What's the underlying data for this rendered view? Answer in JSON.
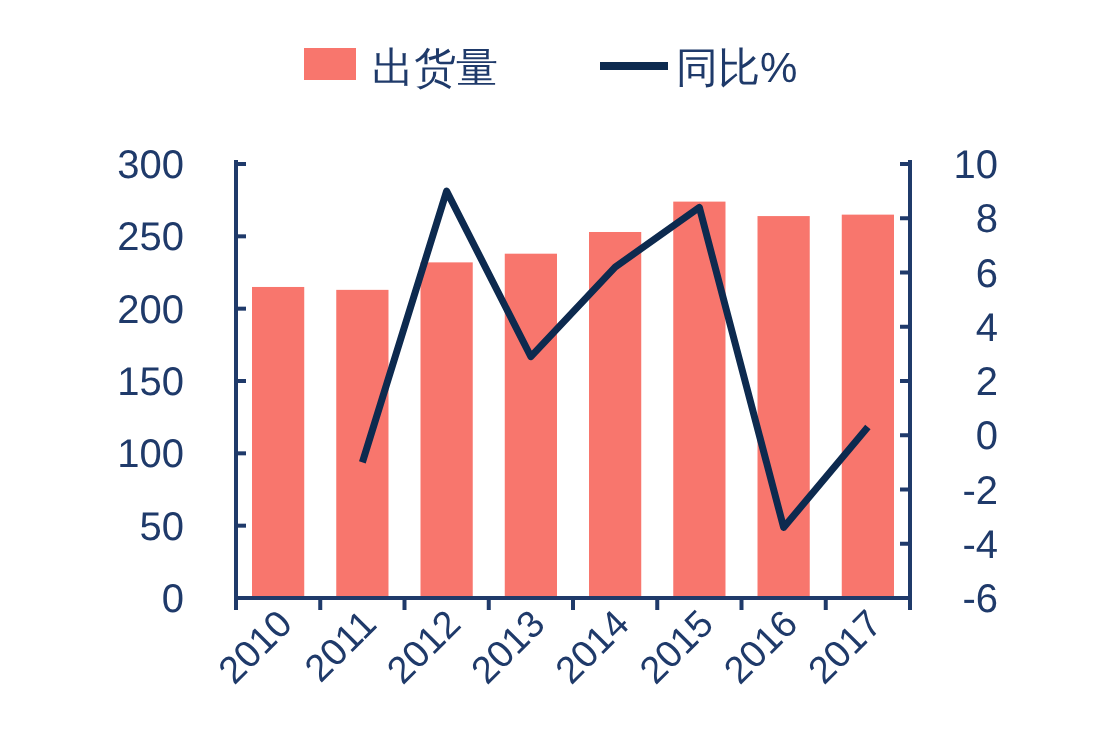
{
  "chart_data": {
    "type": "bar",
    "categories": [
      "2010",
      "2011",
      "2012",
      "2013",
      "2014",
      "2015",
      "2016",
      "2017"
    ],
    "series": [
      {
        "name": "出货量",
        "color": "#f8766d",
        "values": [
          215,
          213,
          232,
          238,
          253,
          274,
          264,
          265
        ]
      },
      {
        "name": "同比%",
        "type": "line",
        "axis": "y2",
        "color": "#0d2a4f",
        "values": [
          null,
          -1.0,
          9.0,
          2.9,
          6.2,
          8.4,
          -3.4,
          0.3
        ]
      }
    ],
    "ylim": [
      0,
      300
    ],
    "yticks": [
      0,
      50,
      100,
      150,
      200,
      250,
      300
    ],
    "y2lim": [
      -6,
      10
    ],
    "y2ticks": [
      -6,
      -4,
      -2,
      0,
      2,
      4,
      6,
      8,
      10
    ],
    "legend": "top",
    "grid": false
  }
}
